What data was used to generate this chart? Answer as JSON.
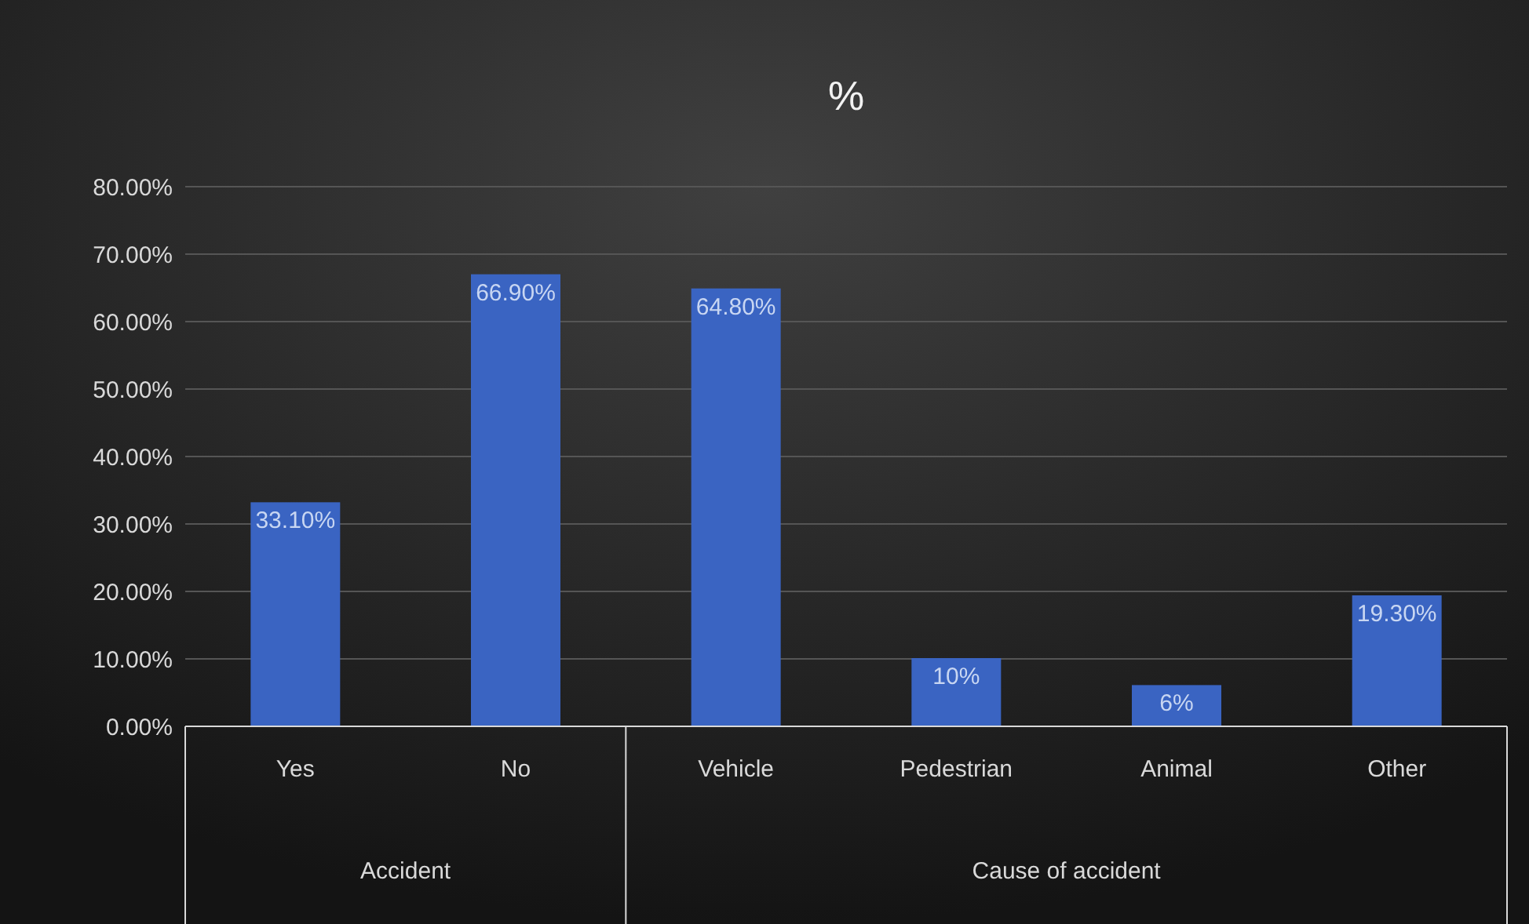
{
  "chart_data": {
    "type": "bar",
    "title": "%",
    "categories": [
      "Yes",
      "No",
      "Vehicle",
      "Pedestrian",
      "Animal",
      "Other"
    ],
    "values": [
      33.1,
      66.9,
      64.8,
      10,
      6,
      19.3
    ],
    "value_labels": [
      "33.10%",
      "66.90%",
      "64.80%",
      "10%",
      "6%",
      "19.30%"
    ],
    "color": "#3a64c2",
    "ylim": [
      0,
      80
    ],
    "yticks": [
      {
        "value": 0,
        "label": "0.00%"
      },
      {
        "value": 10,
        "label": "10.00%"
      },
      {
        "value": 20,
        "label": "20.00%"
      },
      {
        "value": 30,
        "label": "30.00%"
      },
      {
        "value": 40,
        "label": "40.00%"
      },
      {
        "value": 50,
        "label": "50.00%"
      },
      {
        "value": 60,
        "label": "60.00%"
      },
      {
        "value": 70,
        "label": "70.00%"
      },
      {
        "value": 80,
        "label": "80.00%"
      }
    ],
    "grid": "y",
    "annotations": [
      "Accident",
      "Cause of accident"
    ]
  }
}
